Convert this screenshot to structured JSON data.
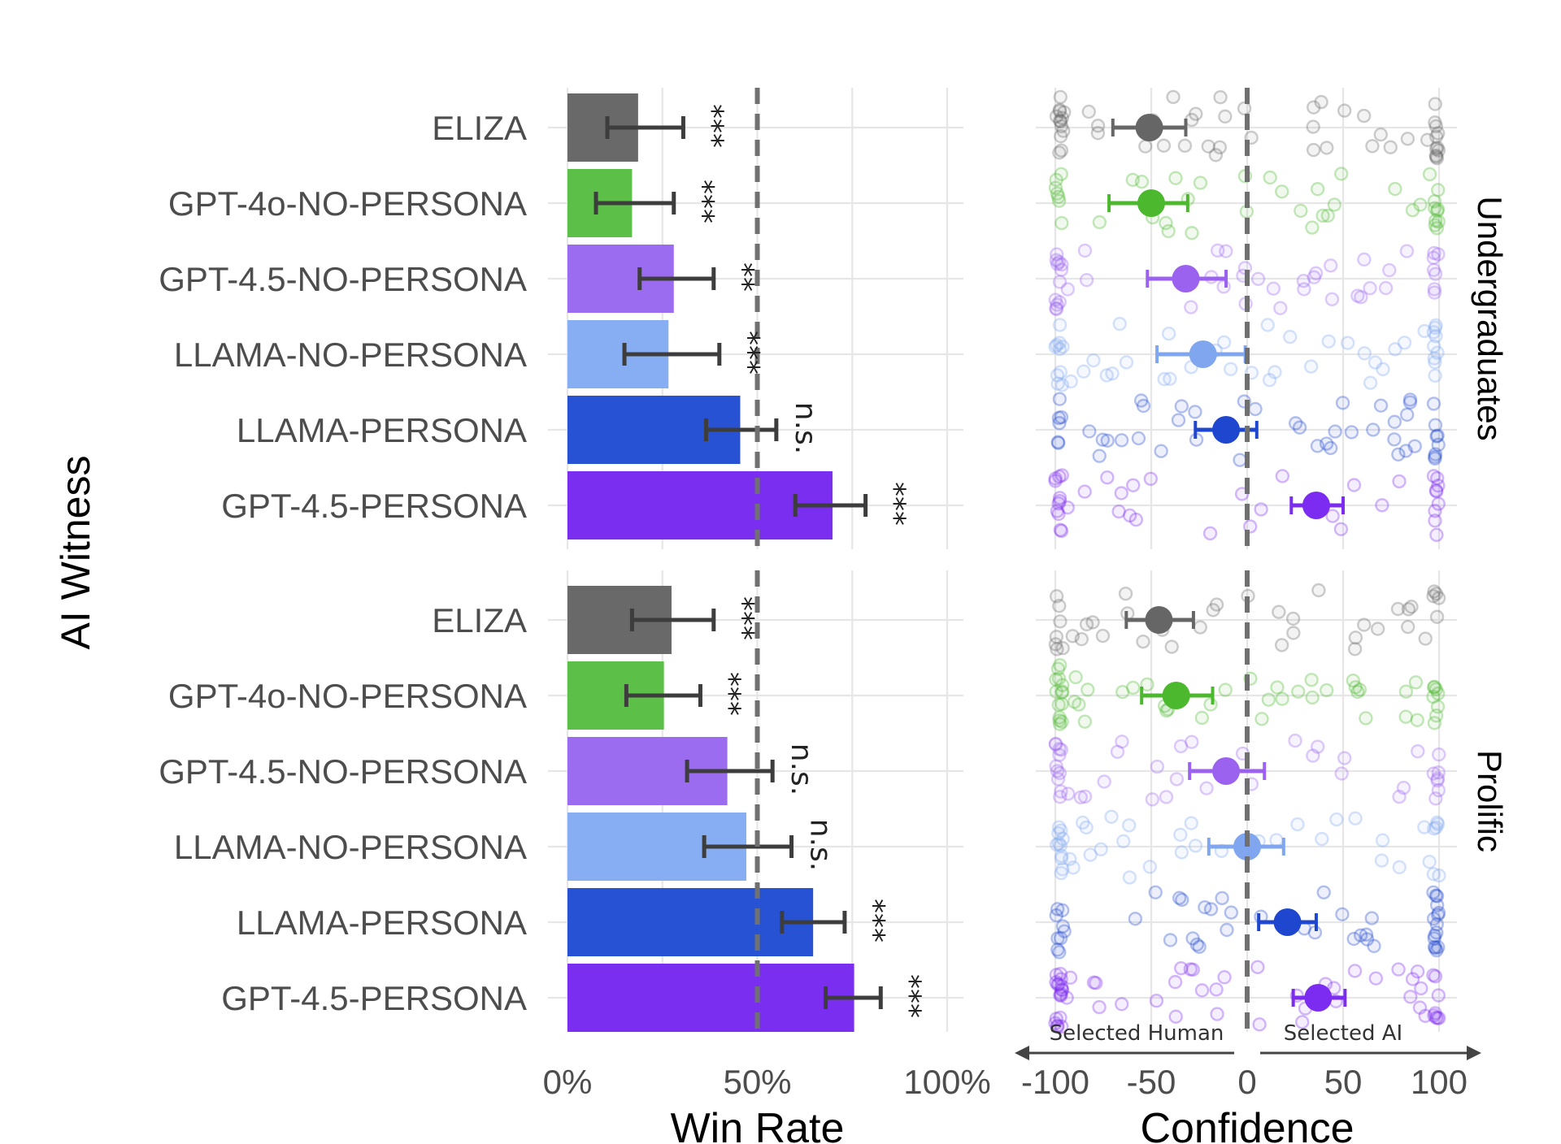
{
  "figure": {
    "y_axis_title": "AI Witness",
    "arrow_left_label": "Selected Human",
    "arrow_right_label": "Selected AI"
  },
  "chart_data": [
    {
      "type": "bar",
      "orientation": "horizontal",
      "panel": "Undergraduates",
      "xlabel": "Win Rate",
      "xlim": [
        0,
        100
      ],
      "x_ticks": [
        0,
        50,
        100
      ],
      "x_tick_labels": [
        "0%",
        "50%",
        "100%"
      ],
      "reference_line": 50,
      "categories": [
        "ELIZA",
        "GPT-4o-NO-PERSONA",
        "GPT-4.5-NO-PERSONA",
        "LLAMA-NO-PERSONA",
        "LLAMA-PERSONA",
        "GPT-4.5-PERSONA"
      ],
      "values": [
        18.6,
        17,
        28,
        26.6,
        45.5,
        69.8
      ],
      "ci_low": [
        10.5,
        7.5,
        19,
        15,
        36.5,
        60
      ],
      "ci_high": [
        30.5,
        28,
        38.5,
        40,
        55,
        78.5
      ],
      "significance": [
        "***",
        "***",
        "**",
        "***",
        "n.s.",
        "***"
      ],
      "colors": [
        "#696969",
        "#5cbf47",
        "#9c6cf0",
        "#87aef2",
        "#2852d4",
        "#7a2ef0"
      ]
    },
    {
      "type": "bar",
      "orientation": "horizontal",
      "panel": "Prolific",
      "xlabel": "Win Rate",
      "xlim": [
        0,
        100
      ],
      "x_ticks": [
        0,
        50,
        100
      ],
      "x_tick_labels": [
        "0%",
        "50%",
        "100%"
      ],
      "reference_line": 50,
      "categories": [
        "ELIZA",
        "GPT-4o-NO-PERSONA",
        "GPT-4.5-NO-PERSONA",
        "LLAMA-NO-PERSONA",
        "LLAMA-PERSONA",
        "GPT-4.5-PERSONA"
      ],
      "values": [
        27.4,
        25.4,
        42.1,
        47.1,
        64.7,
        75.5
      ],
      "ci_low": [
        17,
        15.5,
        31.5,
        36,
        56.5,
        68
      ],
      "ci_high": [
        38.5,
        35,
        54,
        59,
        73,
        82.5
      ],
      "significance": [
        "***",
        "***",
        "n.s.",
        "n.s.",
        "***",
        "***"
      ],
      "colors": [
        "#696969",
        "#5cbf47",
        "#9c6cf0",
        "#87aef2",
        "#2852d4",
        "#7a2ef0"
      ]
    },
    {
      "type": "scatter",
      "panel": "Undergraduates",
      "xlabel": "Confidence",
      "xlim": [
        -100,
        100
      ],
      "x_ticks": [
        -100,
        -50,
        0,
        50,
        100
      ],
      "x_tick_labels": [
        "-100",
        "-50",
        "0",
        "50",
        "100"
      ],
      "reference_line": 0,
      "categories": [
        "ELIZA",
        "GPT-4o-NO-PERSONA",
        "GPT-4.5-NO-PERSONA",
        "LLAMA-NO-PERSONA",
        "LLAMA-PERSONA",
        "GPT-4.5-PERSONA"
      ],
      "means": [
        -51,
        -50,
        -32,
        -23,
        -11,
        36
      ],
      "ci_low": [
        -70,
        -72,
        -52,
        -47,
        -27,
        23
      ],
      "ci_high": [
        -32,
        -31,
        -11,
        -1,
        5,
        50
      ],
      "colors": [
        "#666666",
        "#4cb82e",
        "#9b62f0",
        "#7fa6ef",
        "#1f46cf",
        "#7b2cf0"
      ]
    },
    {
      "type": "scatter",
      "panel": "Prolific",
      "xlabel": "Confidence",
      "xlim": [
        -100,
        100
      ],
      "x_ticks": [
        -100,
        -50,
        0,
        50,
        100
      ],
      "x_tick_labels": [
        "-100",
        "-50",
        "0",
        "50",
        "100"
      ],
      "reference_line": 0,
      "categories": [
        "ELIZA",
        "GPT-4o-NO-PERSONA",
        "GPT-4.5-NO-PERSONA",
        "LLAMA-NO-PERSONA",
        "LLAMA-PERSONA",
        "GPT-4.5-PERSONA"
      ],
      "means": [
        -46,
        -37,
        -11,
        0,
        21,
        37
      ],
      "ci_low": [
        -63,
        -55,
        -30,
        -20,
        6,
        24
      ],
      "ci_high": [
        -28,
        -18,
        9,
        19,
        36,
        51
      ],
      "colors": [
        "#666666",
        "#4cb82e",
        "#9b62f0",
        "#7fa6ef",
        "#1f46cf",
        "#7b2cf0"
      ]
    }
  ]
}
